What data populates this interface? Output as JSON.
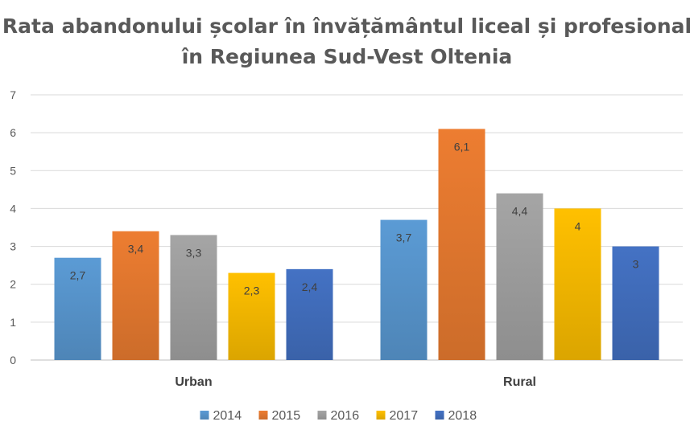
{
  "chart_data": {
    "type": "bar",
    "title": "Rata abandonului școlar în învățământul liceal și profesional în Regiunea Sud-Vest Oltenia",
    "categories": [
      "Urban",
      "Rural"
    ],
    "series": [
      {
        "name": "2014",
        "values": [
          2.7,
          3.7
        ],
        "labels": [
          "2,7",
          "3,7"
        ],
        "color": "#5B9BD5"
      },
      {
        "name": "2015",
        "values": [
          3.4,
          6.1
        ],
        "labels": [
          "3,4",
          "6,1"
        ],
        "color": "#ED7D31"
      },
      {
        "name": "2016",
        "values": [
          3.3,
          4.4
        ],
        "labels": [
          "3,3",
          "4,4"
        ],
        "color": "#A5A5A5"
      },
      {
        "name": "2017",
        "values": [
          2.3,
          4.0
        ],
        "labels": [
          "2,3",
          "4"
        ],
        "color": "#FFC000"
      },
      {
        "name": "2018",
        "values": [
          2.4,
          3.0
        ],
        "labels": [
          "2,4",
          "3"
        ],
        "color": "#4472C4"
      }
    ],
    "ylim": [
      0,
      7
    ],
    "yticks": [
      "0",
      "1",
      "2",
      "3",
      "4",
      "5",
      "6",
      "7"
    ],
    "grid": true,
    "legend": "bottom",
    "xlabel": "",
    "ylabel": ""
  }
}
